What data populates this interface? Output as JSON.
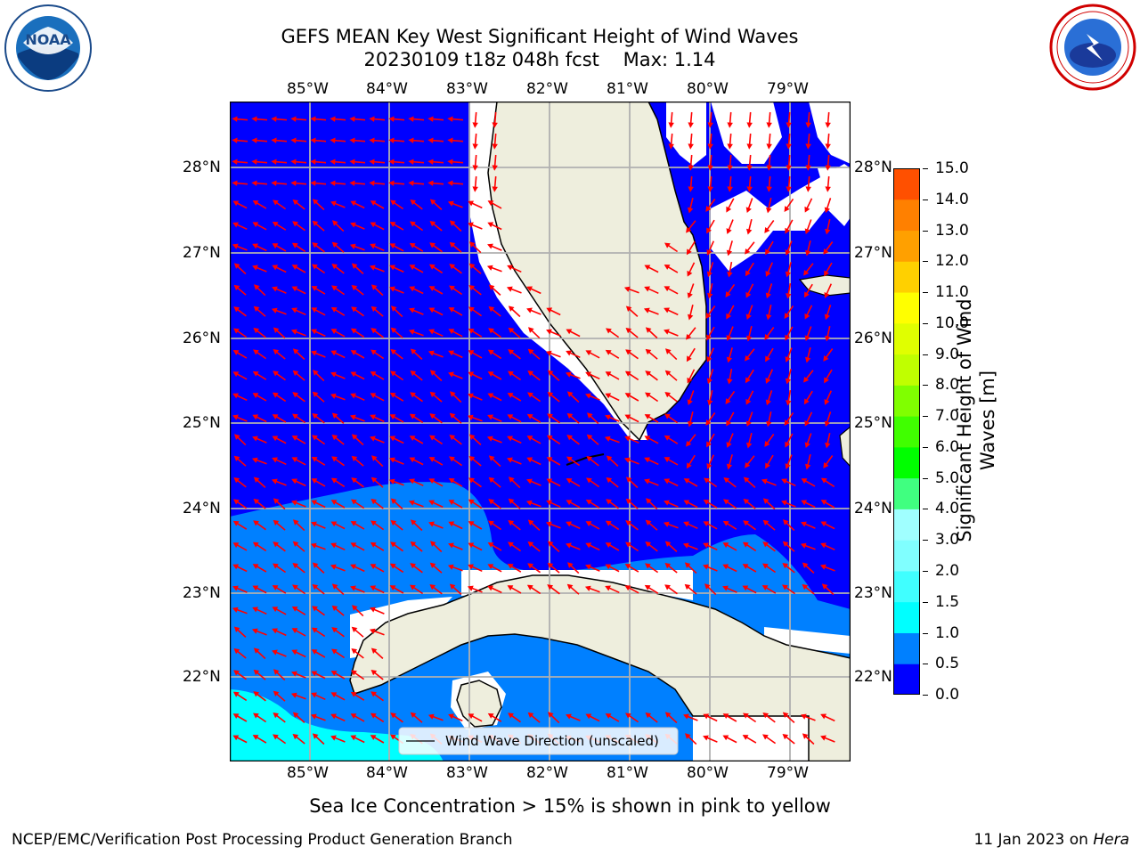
{
  "title": "GEFS MEAN Key West Significant Height of Wind Waves",
  "subtitle": "20230109 t18z 048h fcst    Max: 1.14",
  "lon_labels": [
    "85°W",
    "84°W",
    "83°W",
    "82°W",
    "81°W",
    "80°W",
    "79°W"
  ],
  "lat_labels": [
    "28°N",
    "27°N",
    "26°N",
    "25°N",
    "24°N",
    "23°N",
    "22°N"
  ],
  "legend_label": "Wind Wave Direction (unscaled)",
  "colorbar": {
    "title": "Significant Height of Wind Waves [m]",
    "title_line1": "Significant Height of Wind",
    "title_line2": "Waves [m]",
    "ticks": [
      "0.0",
      "0.5",
      "1.0",
      "1.5",
      "2.0",
      "3.0",
      "4.0",
      "5.0",
      "6.0",
      "7.0",
      "8.0",
      "9.0",
      "10.0",
      "11.0",
      "12.0",
      "13.0",
      "14.0",
      "15.0"
    ],
    "colors": [
      "#0000ff",
      "#0080ff",
      "#00ffff",
      "#40ffff",
      "#80ffff",
      "#a0ffff",
      "#40ff80",
      "#00ff00",
      "#40ff00",
      "#80ff00",
      "#c0ff00",
      "#e0ff00",
      "#ffff00",
      "#ffd000",
      "#ffa000",
      "#ff8000",
      "#ff5000",
      "#ff2000",
      "#ff0000"
    ]
  },
  "map_colors": {
    "wave_low": "#0000ff",
    "wave_mid": "#0080ff",
    "wave_high": "#00ffff",
    "land": "#eeeedd",
    "arrow": "#ff0000",
    "grid": "#b0b0b0"
  },
  "sea_ice_note": "Sea Ice Concentration > 15% is shown in pink to yellow",
  "footer_left": "NCEP/EMC/Verification Post Processing Product Generation Branch",
  "footer_date": "11 Jan 2023 on ",
  "footer_host": "Hera",
  "logos": {
    "noaa": "NOAA",
    "nws": "NATIONAL WEATHER SERVICE"
  }
}
